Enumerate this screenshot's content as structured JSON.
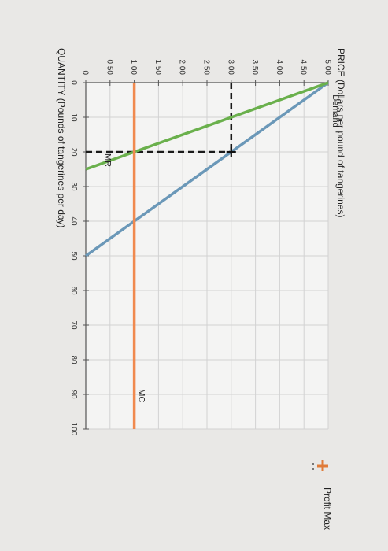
{
  "chart_data": {
    "type": "line",
    "title": "",
    "xlabel": "QUANTITY (Pounds of tangerines per day)",
    "ylabel": "PRICE (Dollars per pound of tangerines)",
    "x_ticks": [
      "0",
      "10",
      "20",
      "30",
      "40",
      "50",
      "60",
      "70",
      "80",
      "90",
      "100"
    ],
    "y_ticks": [
      "0",
      "0.50",
      "1.00",
      "1.50",
      "2.00",
      "2.50",
      "3.00",
      "3.50",
      "4.00",
      "4.50",
      "5.00"
    ],
    "xlim": [
      0,
      100
    ],
    "ylim": [
      0,
      5
    ],
    "grid": true,
    "series": [
      {
        "name": "Demand",
        "color": "#6b98b8",
        "points": [
          [
            0,
            5.0
          ],
          [
            50,
            0.0
          ]
        ]
      },
      {
        "name": "MR",
        "color": "#6ab04c",
        "points": [
          [
            0,
            5.0
          ],
          [
            25,
            0.0
          ]
        ]
      },
      {
        "name": "MC",
        "color": "#f0894e",
        "points": [
          [
            0,
            1.0
          ],
          [
            100,
            1.0
          ]
        ]
      }
    ],
    "annotations": [
      {
        "label": "Demand",
        "x": 3,
        "y": 5.0
      },
      {
        "label": "MR",
        "x": 20,
        "y": 0.3
      },
      {
        "label": "MC",
        "x": 88,
        "y": 1.0
      }
    ],
    "profit_max_point": {
      "x": 20,
      "y": 3.0
    },
    "legend": {
      "label": "Profit Max",
      "placement": "right"
    }
  }
}
